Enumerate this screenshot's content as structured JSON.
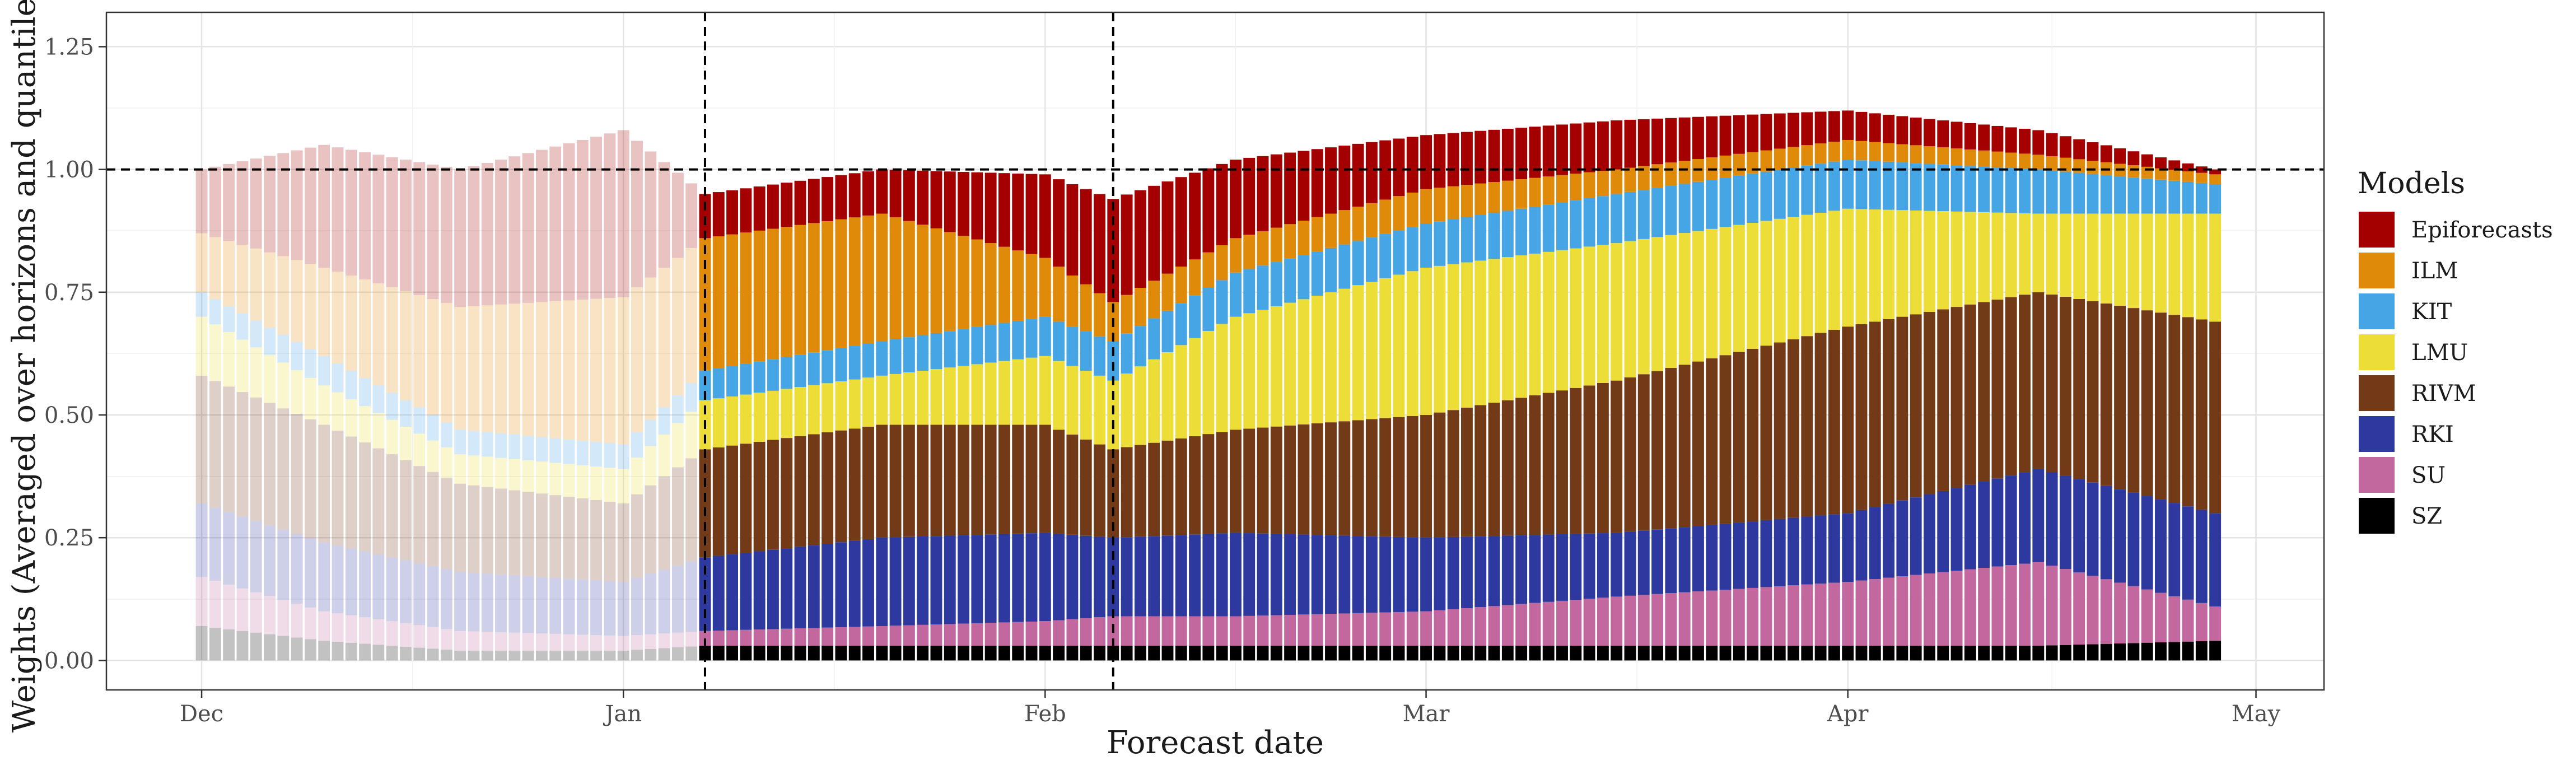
{
  "chart_data": {
    "type": "bar",
    "stacked": true,
    "xlabel": "Forecast date",
    "ylabel": "Weights (Averaged over horizons and quantiles)",
    "x_start": "2020-12-01",
    "x_end": "2021-04-28",
    "xlim": [
      "2020-11-24",
      "2021-05-06"
    ],
    "ylim": [
      -0.06,
      1.32
    ],
    "x_ticks": [
      {
        "label": "Dec",
        "date": "2020-12-01"
      },
      {
        "label": "Jan",
        "date": "2021-01-01"
      },
      {
        "label": "Feb",
        "date": "2021-02-01"
      },
      {
        "label": "Mar",
        "date": "2021-03-01"
      },
      {
        "label": "Apr",
        "date": "2021-04-01"
      },
      {
        "label": "May",
        "date": "2021-05-01"
      }
    ],
    "y_ticks": [
      "0.00",
      "0.25",
      "0.50",
      "0.75",
      "1.00",
      "1.25"
    ],
    "y_tick_values": [
      0,
      0.25,
      0.5,
      0.75,
      1.0,
      1.25
    ],
    "grid": true,
    "legend_position": "right",
    "legend_title": "Models",
    "faded_before": "2021-01-07",
    "vlines": [
      "2021-01-07",
      "2021-02-06"
    ],
    "hline": 1.0,
    "stack_order_bottom_to_top": [
      "SZ",
      "SU",
      "RKI",
      "RIVM",
      "LMU",
      "KIT",
      "ILM",
      "Epiforecasts"
    ],
    "series": [
      {
        "name": "Epiforecasts",
        "color": "#A50000",
        "keyframes": [
          [
            "2020-12-01",
            0.13
          ],
          [
            "2020-12-10",
            0.25
          ],
          [
            "2020-12-20",
            0.28
          ],
          [
            "2021-01-01",
            0.34
          ],
          [
            "2021-01-07",
            0.09
          ],
          [
            "2021-01-20",
            0.09
          ],
          [
            "2021-02-01",
            0.17
          ],
          [
            "2021-02-06",
            0.21
          ],
          [
            "2021-02-15",
            0.16
          ],
          [
            "2021-03-01",
            0.11
          ],
          [
            "2021-03-15",
            0.1
          ],
          [
            "2021-04-01",
            0.06
          ],
          [
            "2021-04-15",
            0.05
          ],
          [
            "2021-04-28",
            0.01
          ]
        ]
      },
      {
        "name": "ILM",
        "color": "#E08A0A",
        "keyframes": [
          [
            "2020-12-01",
            0.12
          ],
          [
            "2020-12-10",
            0.18
          ],
          [
            "2020-12-20",
            0.25
          ],
          [
            "2021-01-01",
            0.3
          ],
          [
            "2021-01-07",
            0.27
          ],
          [
            "2021-01-20",
            0.26
          ],
          [
            "2021-02-01",
            0.12
          ],
          [
            "2021-02-06",
            0.08
          ],
          [
            "2021-02-15",
            0.07
          ],
          [
            "2021-03-01",
            0.07
          ],
          [
            "2021-03-15",
            0.05
          ],
          [
            "2021-04-01",
            0.04
          ],
          [
            "2021-04-15",
            0.03
          ],
          [
            "2021-04-28",
            0.02
          ]
        ]
      },
      {
        "name": "KIT",
        "color": "#45A5E5",
        "keyframes": [
          [
            "2020-12-01",
            0.05
          ],
          [
            "2020-12-10",
            0.06
          ],
          [
            "2020-12-20",
            0.05
          ],
          [
            "2021-01-01",
            0.05
          ],
          [
            "2021-01-07",
            0.06
          ],
          [
            "2021-01-20",
            0.07
          ],
          [
            "2021-02-01",
            0.08
          ],
          [
            "2021-02-06",
            0.08
          ],
          [
            "2021-02-15",
            0.09
          ],
          [
            "2021-03-01",
            0.09
          ],
          [
            "2021-03-15",
            0.1
          ],
          [
            "2021-04-01",
            0.1
          ],
          [
            "2021-04-15",
            0.09
          ],
          [
            "2021-04-28",
            0.06
          ]
        ]
      },
      {
        "name": "LMU",
        "color": "#ECDD37",
        "keyframes": [
          [
            "2020-12-01",
            0.12
          ],
          [
            "2020-12-10",
            0.08
          ],
          [
            "2020-12-20",
            0.06
          ],
          [
            "2021-01-01",
            0.07
          ],
          [
            "2021-01-07",
            0.1
          ],
          [
            "2021-01-20",
            0.1
          ],
          [
            "2021-02-01",
            0.14
          ],
          [
            "2021-02-06",
            0.14
          ],
          [
            "2021-02-15",
            0.23
          ],
          [
            "2021-03-01",
            0.3
          ],
          [
            "2021-03-15",
            0.28
          ],
          [
            "2021-04-01",
            0.24
          ],
          [
            "2021-04-15",
            0.16
          ],
          [
            "2021-04-28",
            0.22
          ]
        ]
      },
      {
        "name": "RIVM",
        "color": "#733A18",
        "keyframes": [
          [
            "2020-12-01",
            0.26
          ],
          [
            "2020-12-10",
            0.24
          ],
          [
            "2020-12-20",
            0.18
          ],
          [
            "2021-01-01",
            0.16
          ],
          [
            "2021-01-07",
            0.22
          ],
          [
            "2021-01-20",
            0.23
          ],
          [
            "2021-02-01",
            0.22
          ],
          [
            "2021-02-06",
            0.18
          ],
          [
            "2021-02-15",
            0.21
          ],
          [
            "2021-03-01",
            0.25
          ],
          [
            "2021-03-15",
            0.31
          ],
          [
            "2021-04-01",
            0.38
          ],
          [
            "2021-04-15",
            0.36
          ],
          [
            "2021-04-28",
            0.39
          ]
        ]
      },
      {
        "name": "RKI",
        "color": "#2D399F",
        "keyframes": [
          [
            "2020-12-01",
            0.15
          ],
          [
            "2020-12-10",
            0.14
          ],
          [
            "2020-12-20",
            0.12
          ],
          [
            "2021-01-01",
            0.11
          ],
          [
            "2021-01-07",
            0.15
          ],
          [
            "2021-01-20",
            0.18
          ],
          [
            "2021-02-01",
            0.18
          ],
          [
            "2021-02-06",
            0.16
          ],
          [
            "2021-02-15",
            0.17
          ],
          [
            "2021-03-01",
            0.15
          ],
          [
            "2021-03-15",
            0.13
          ],
          [
            "2021-04-01",
            0.14
          ],
          [
            "2021-04-15",
            0.19
          ],
          [
            "2021-04-28",
            0.19
          ]
        ]
      },
      {
        "name": "SU",
        "color": "#C2689E",
        "keyframes": [
          [
            "2020-12-01",
            0.1
          ],
          [
            "2020-12-10",
            0.06
          ],
          [
            "2020-12-20",
            0.04
          ],
          [
            "2021-01-01",
            0.03
          ],
          [
            "2021-01-07",
            0.03
          ],
          [
            "2021-01-20",
            0.04
          ],
          [
            "2021-02-01",
            0.05
          ],
          [
            "2021-02-06",
            0.06
          ],
          [
            "2021-02-15",
            0.06
          ],
          [
            "2021-03-01",
            0.07
          ],
          [
            "2021-03-15",
            0.1
          ],
          [
            "2021-04-01",
            0.13
          ],
          [
            "2021-04-15",
            0.17
          ],
          [
            "2021-04-28",
            0.07
          ]
        ]
      },
      {
        "name": "SZ",
        "color": "#000000",
        "keyframes": [
          [
            "2020-12-01",
            0.07
          ],
          [
            "2020-12-10",
            0.04
          ],
          [
            "2020-12-20",
            0.02
          ],
          [
            "2021-01-01",
            0.02
          ],
          [
            "2021-01-07",
            0.03
          ],
          [
            "2021-01-20",
            0.03
          ],
          [
            "2021-02-01",
            0.03
          ],
          [
            "2021-02-06",
            0.03
          ],
          [
            "2021-02-15",
            0.03
          ],
          [
            "2021-03-01",
            0.03
          ],
          [
            "2021-03-15",
            0.03
          ],
          [
            "2021-04-01",
            0.03
          ],
          [
            "2021-04-15",
            0.03
          ],
          [
            "2021-04-28",
            0.04
          ]
        ]
      }
    ]
  }
}
